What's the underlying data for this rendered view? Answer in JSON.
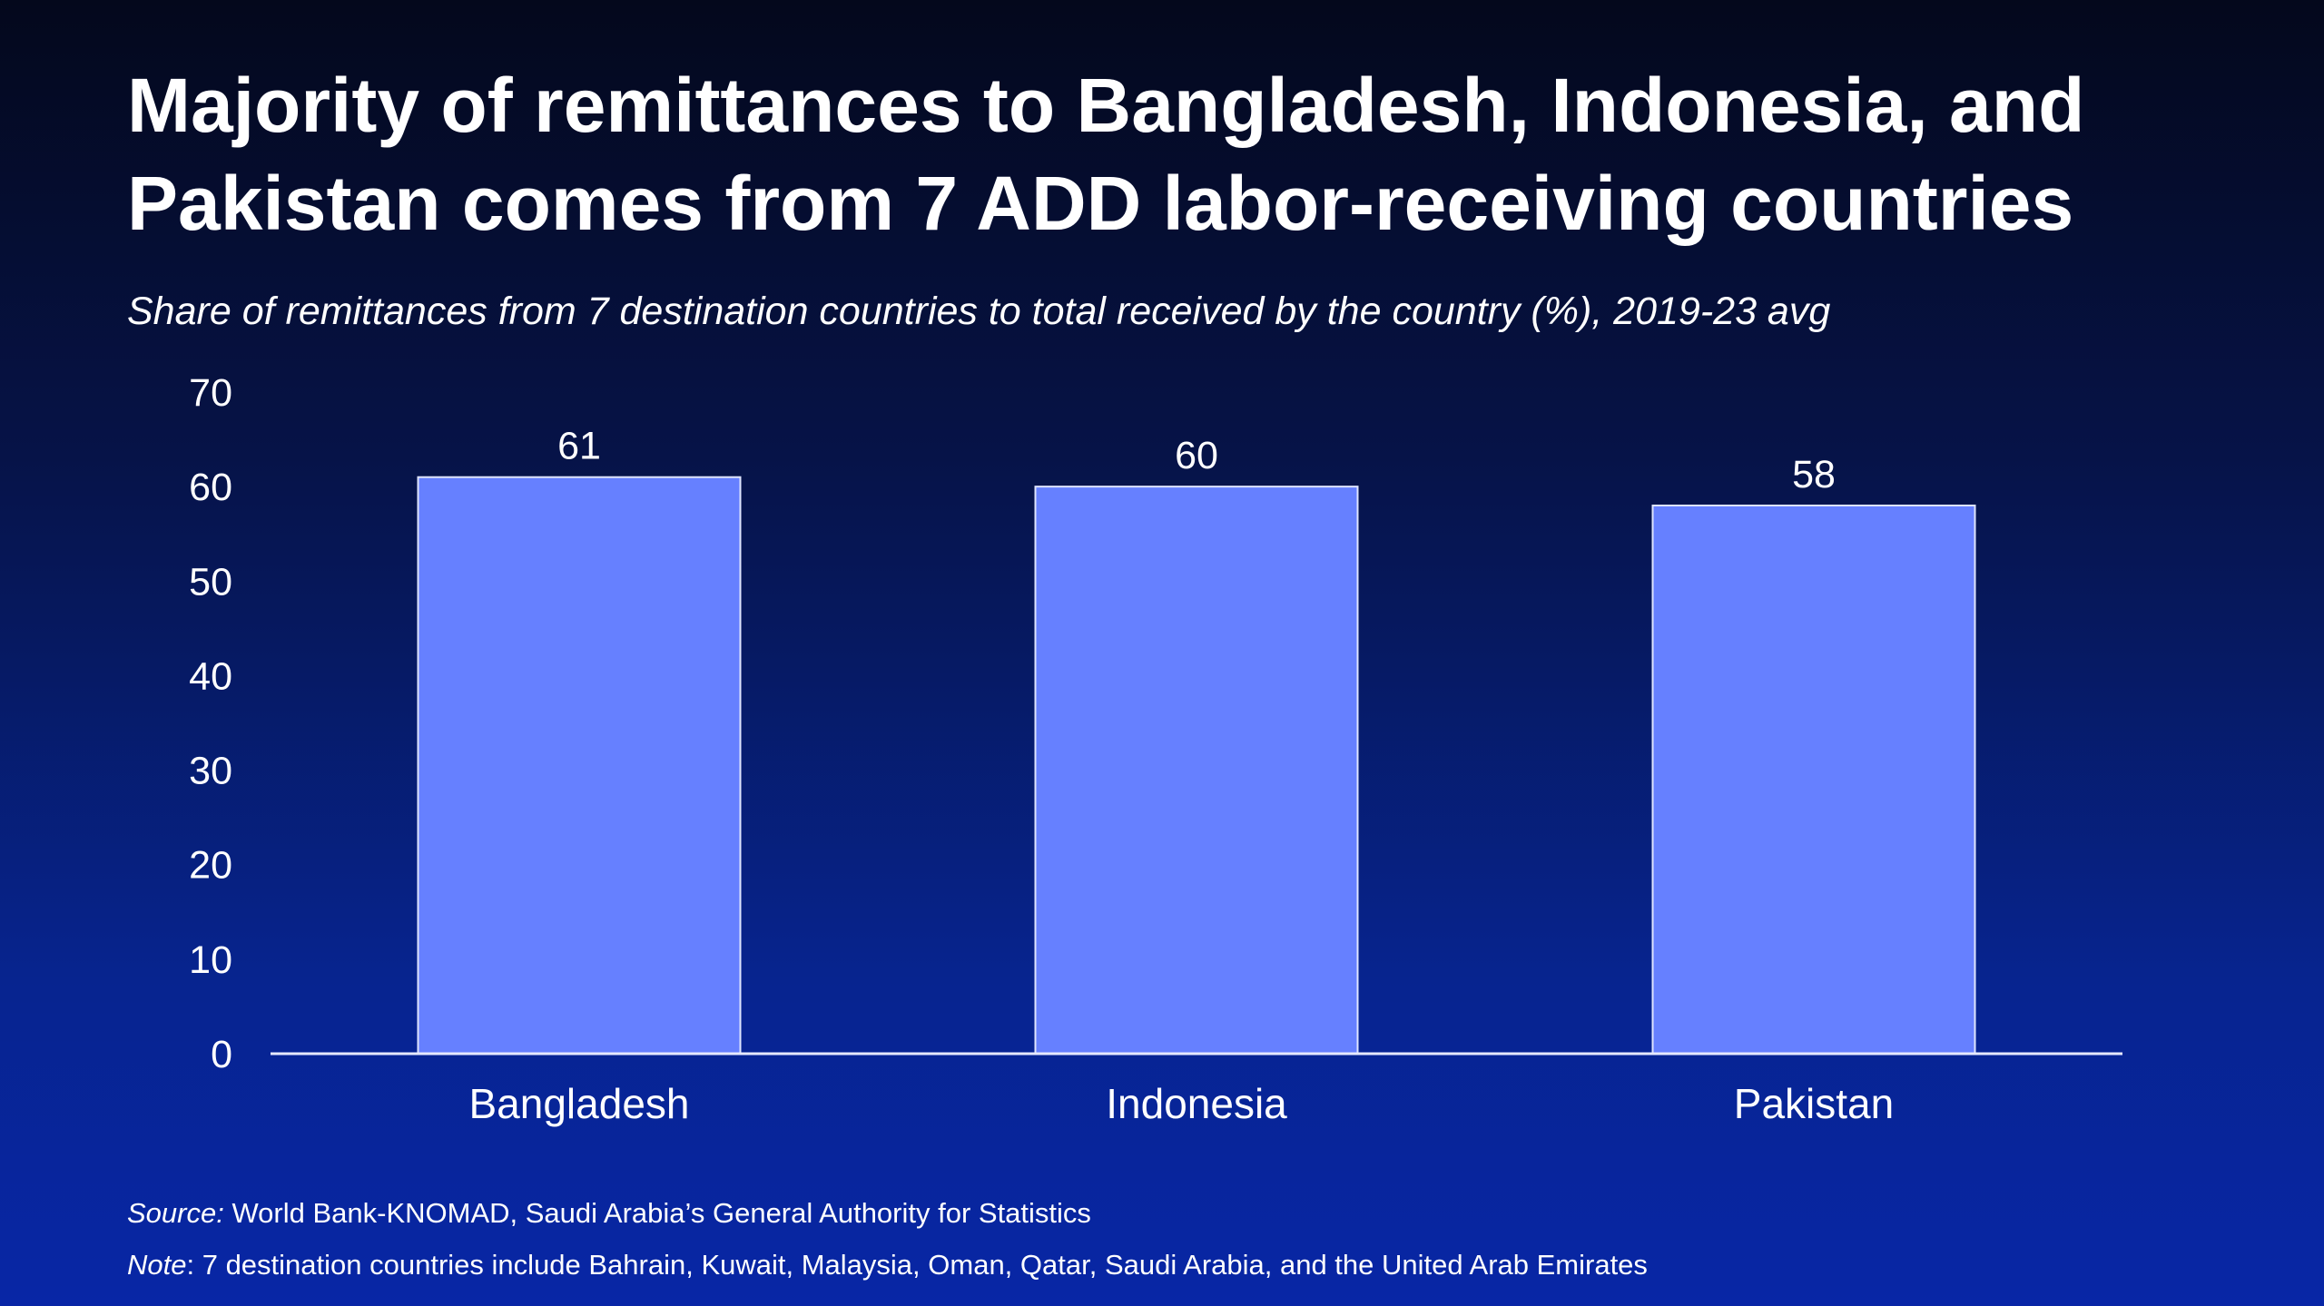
{
  "title": "Majority of remittances to Bangladesh, Indonesia, and Pakistan comes from 7 ADD labor-receiving countries",
  "subtitle": "Share of remittances from 7 destination countries to total received by the country (%), 2019-23 avg",
  "footer": {
    "source_label": "Source:",
    "source_text": " World Bank-KNOMAD, Saudi Arabia’s General Authority for Statistics",
    "note_label": "Note",
    "note_text": ": 7 destination countries include Bahrain, Kuwait, Malaysia, Oman, Qatar, Saudi Arabia, and the United Arab Emirates"
  },
  "colors": {
    "bar": "#6680ff",
    "axis": "#e6e9ff",
    "text": "#ffffff"
  },
  "chart_data": {
    "type": "bar",
    "categories": [
      "Bangladesh",
      "Indonesia",
      "Pakistan"
    ],
    "values": [
      61,
      60,
      58
    ],
    "data_labels": [
      "61",
      "60",
      "58"
    ],
    "title": "",
    "xlabel": "",
    "ylabel": "",
    "ylim": [
      0,
      70
    ],
    "yticks": [
      0,
      10,
      20,
      30,
      40,
      50,
      60,
      70
    ],
    "grid": false,
    "legend": "none"
  }
}
